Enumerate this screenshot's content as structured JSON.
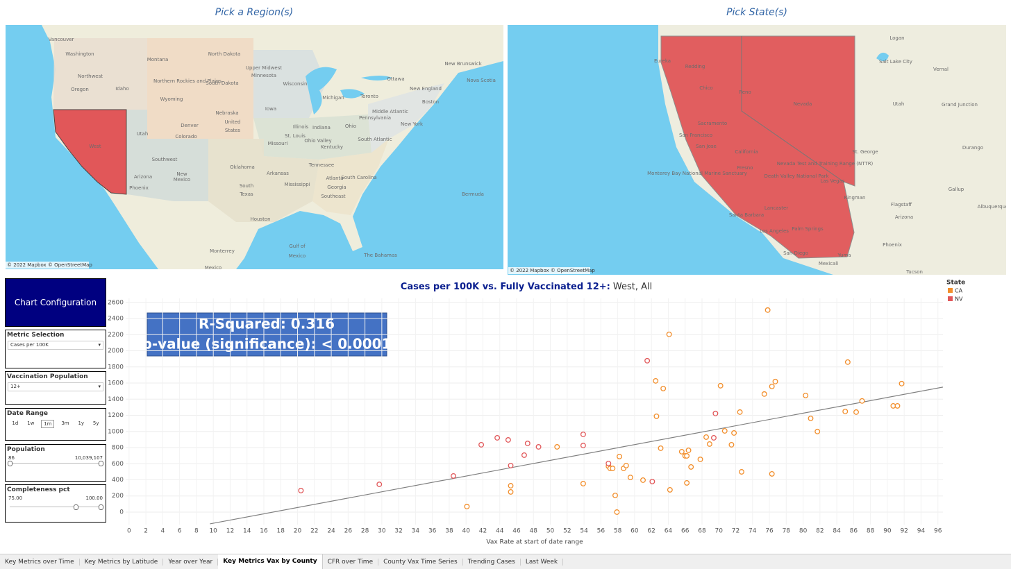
{
  "header": {
    "region_title": "Pick a Region(s)",
    "state_title": "Pick State(s)"
  },
  "region_map": {
    "attribution": "© 2022 Mapbox © OpenStreetMap",
    "labels": [
      "Vancouver",
      "Washington",
      "Northwest",
      "Oregon",
      "Idaho",
      "Montana",
      "North Dakota",
      "Northern Rockies and Plains",
      "South Dakota",
      "Wyoming",
      "Upper Midwest",
      "Minnesota",
      "Wisconsin",
      "Michigan",
      "Iowa",
      "Nebraska",
      "United",
      "States",
      "Denver",
      "Colorado",
      "Utah",
      "West",
      "Southwest",
      "Arizona",
      "Phoenix",
      "New",
      "Mexico",
      "Missouri",
      "St. Louis",
      "Illinois",
      "Ohio Valley",
      "Indiana",
      "Ohio",
      "Kentucky",
      "Oklahoma",
      "Arkansas",
      "Tennessee",
      "South",
      "Texas",
      "Mississippi",
      "Atlanta",
      "Georgia",
      "Southeast",
      "South Carolina",
      "Houston",
      "Monterrey",
      "Mexico",
      "Gulf of",
      "Mexico",
      "The Bahamas",
      "Bermuda",
      "Ottawa",
      "Toronto",
      "New Brunswick",
      "Nova Scotia",
      "New England",
      "Boston",
      "Middle Atlantic",
      "New York",
      "Pennsylvania",
      "South Atlantic"
    ]
  },
  "state_map": {
    "attribution": "© 2022 Mapbox © OpenStreetMap",
    "labels": [
      "Logan",
      "Eureka",
      "Redding",
      "Salt Lake City",
      "Vernal",
      "Chico",
      "Reno",
      "Utah",
      "Nevada",
      "Grand Junction",
      "Sacramento",
      "San Francisco",
      "San Jose",
      "California",
      "St. George",
      "Durango",
      "Fresno",
      "Monterey Bay National Marine Sanctuary",
      "Death Valley National Park",
      "Nevada Test and Training Range (NTTR)",
      "Las Vegas",
      "Gallup",
      "Kingman",
      "Flagstaff",
      "Albuquerque",
      "Lancaster",
      "Arizona",
      "Santa Barbara",
      "Los Angeles",
      "Palm Springs",
      "Phoenix",
      "San Diego",
      "Mexicali",
      "Yuma",
      "Tucson"
    ]
  },
  "config": {
    "title": "Chart Configuration",
    "metric": {
      "label": "Metric Selection",
      "value": "Cases per 100K"
    },
    "vaccination": {
      "label": "Vaccination Population",
      "value": "12+"
    },
    "date_range": {
      "label": "Date Range",
      "options": [
        "1d",
        "1w",
        "1m",
        "3m",
        "1y",
        "5y"
      ],
      "selected": "1m"
    },
    "population": {
      "label": "Population",
      "min": "86",
      "max": "10,039,107"
    },
    "completeness": {
      "label": "Completeness pct",
      "min": "75.00",
      "max": "100.00"
    }
  },
  "tabs": [
    "Key Metrics over Time",
    "Key Metrics by Latitude",
    "Year over Year",
    "Key Metrics Vax by County",
    "CFR over Time",
    "County Vax Time Series",
    "Trending Cases",
    "Last Week"
  ],
  "active_tab": "Key Metrics Vax by County",
  "chart_data": {
    "type": "scatter",
    "title": "Cases per 100K vs. Fully Vaccinated 12+:",
    "title_filter": "West, All",
    "x_label": "Vax Rate at start of date range",
    "legend_title": "State",
    "legend": "top-right",
    "grid": true,
    "annotation": [
      "R-Squared: 0.316",
      "p-value (significance): < 0.0001"
    ],
    "xlim": [
      -0.4,
      96.6
    ],
    "ylim": [
      -155,
      2650
    ],
    "xticks": [
      0,
      2,
      4,
      6,
      8,
      10,
      12,
      14,
      16,
      18,
      20,
      22,
      24,
      26,
      28,
      30,
      32,
      34,
      36,
      38,
      40,
      42,
      44,
      46,
      48,
      50,
      52,
      54,
      56,
      58,
      60,
      62,
      64,
      66,
      68,
      70,
      72,
      74,
      76,
      78,
      80,
      82,
      84,
      86,
      88,
      90,
      92,
      94,
      96
    ],
    "yticks": [
      0,
      200,
      400,
      600,
      800,
      1000,
      1200,
      1400,
      1600,
      1800,
      2000,
      2200,
      2400,
      2600
    ],
    "trend_line": {
      "color": "#808080",
      "x": [
        9.6,
        96.6
      ],
      "y": [
        -146,
        1550
      ]
    },
    "series": [
      {
        "name": "CA",
        "color": "#f28e2b",
        "x": [
          40.1,
          45.3,
          45.3,
          50.8,
          53.9,
          56.9,
          57.1,
          57.4,
          57.7,
          57.9,
          58.2,
          58.7,
          59.0,
          59.5,
          61.0,
          62.5,
          62.6,
          63.1,
          63.4,
          64.1,
          64.2,
          65.6,
          66.0,
          66.2,
          66.2,
          66.4,
          66.7,
          67.8,
          68.5,
          68.9,
          70.2,
          70.7,
          71.5,
          71.8,
          72.5,
          72.7,
          75.4,
          75.8,
          76.3,
          76.3,
          76.7,
          80.3,
          80.9,
          81.7,
          85.0,
          85.3,
          86.3,
          87.0,
          90.7,
          91.2,
          91.7
        ],
        "values": [
          69,
          327,
          250,
          809,
          353,
          568,
          542,
          542,
          207,
          0,
          689,
          542,
          577,
          430,
          396,
          1627,
          1188,
          792,
          1532,
          2204,
          276,
          749,
          697,
          697,
          362,
          766,
          560,
          654,
          930,
          844,
          1567,
          1007,
          835,
          981,
          1240,
          499,
          1464,
          2505,
          1558,
          474,
          1619,
          1446,
          1162,
          999,
          1248,
          1860,
          1240,
          1378,
          1317,
          1317,
          1593
        ]
      },
      {
        "name": "NV",
        "color": "#e15759",
        "x": [
          20.4,
          29.7,
          38.5,
          41.8,
          43.7,
          45.0,
          45.3,
          46.9,
          47.3,
          48.6,
          53.9,
          53.9,
          56.9,
          61.5,
          62.1,
          69.6,
          69.4
        ],
        "values": [
          267,
          344,
          448,
          835,
          921,
          895,
          577,
          706,
          852,
          809,
          964,
          826,
          603,
          1877,
          379,
          1223,
          921
        ]
      }
    ]
  }
}
